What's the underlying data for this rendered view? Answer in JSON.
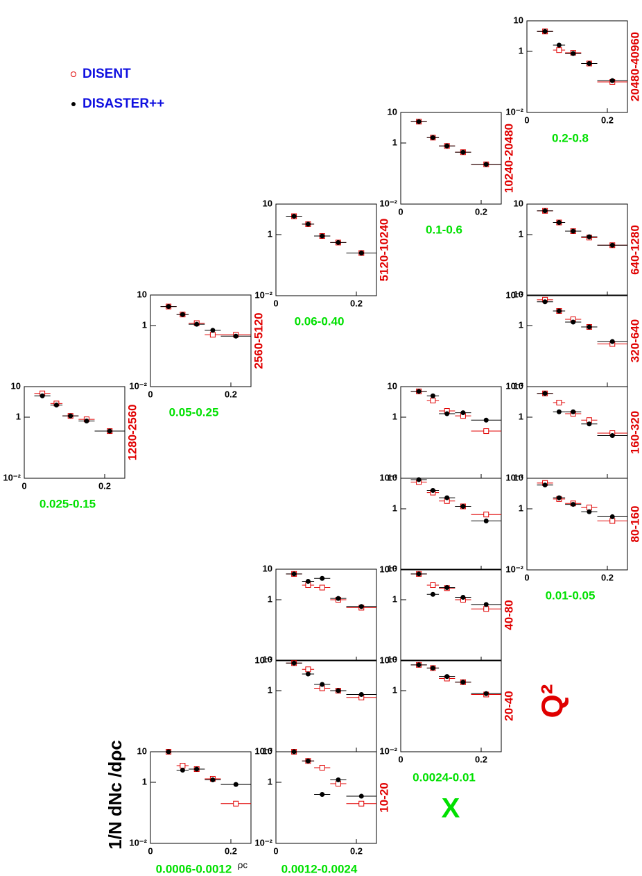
{
  "chart_data": {
    "type": "scatter",
    "log_y": true,
    "y_label": "1/N dNc /dρc",
    "x_label": "ρc",
    "x_axis_title": "X",
    "q2_axis_title": "Q²",
    "xlim": [
      0,
      0.25
    ],
    "ylim": [
      0.01,
      10
    ],
    "xticks": [
      0,
      0.2
    ],
    "yticks": [
      10,
      1,
      {
        "value": 0.01,
        "label": "10⁻²"
      }
    ],
    "x": [
      0.045,
      0.08,
      0.115,
      0.155,
      0.2125
    ],
    "bins": [
      0.025,
      0.065,
      0.095,
      0.135,
      0.175,
      0.25
    ],
    "series": [
      {
        "name": "DISENT",
        "color": "#e00000",
        "marker": "open"
      },
      {
        "name": "DISASTER++",
        "color": "#000000",
        "marker": "filled"
      }
    ],
    "panels": [
      {
        "x_range": "0.025-0.15",
        "q2_range": "1280-2560",
        "values": [
          [
            6,
            2.8,
            1.1,
            0.85,
            0.35
          ],
          [
            5,
            2.5,
            1.1,
            0.75,
            0.35
          ]
        ]
      },
      {
        "x_range": "0.05-0.25",
        "q2_range": "2560-5120",
        "values": [
          [
            4.2,
            2.3,
            1.2,
            0.5,
            0.5
          ],
          [
            4.2,
            2.3,
            1.1,
            0.7,
            0.45
          ]
        ]
      },
      {
        "x_range": "0.06-0.40",
        "q2_range": "5120-10240",
        "values": [
          [
            4,
            2.2,
            0.9,
            0.55,
            0.25
          ],
          [
            4,
            2.2,
            0.9,
            0.55,
            0.25
          ]
        ]
      },
      {
        "x_range": "0.1-0.6",
        "q2_range": "10240-20480",
        "values": [
          [
            5,
            1.5,
            0.8,
            0.5,
            0.2
          ],
          [
            5,
            1.5,
            0.8,
            0.5,
            0.2
          ]
        ]
      },
      {
        "x_range": "0.2-0.8",
        "q2_range": "20480-40960",
        "values": [
          [
            4.5,
            1.1,
            0.9,
            0.4,
            0.1
          ],
          [
            4.5,
            1.6,
            0.85,
            0.4,
            0.11
          ]
        ]
      },
      {
        "q2_range": "640-1280",
        "values": [
          [
            6,
            2.5,
            1.3,
            0.8,
            0.45
          ],
          [
            6,
            2.5,
            1.3,
            0.85,
            0.45
          ]
        ]
      },
      {
        "q2_range": "320-640",
        "values": [
          [
            7,
            3,
            1.6,
            0.9,
            0.25
          ],
          [
            6,
            3,
            1.3,
            0.9,
            0.3
          ]
        ]
      },
      {
        "q2_range": "160-320",
        "values": [
          [
            6,
            3,
            1.3,
            0.8,
            0.3
          ],
          [
            6,
            1.5,
            1.5,
            0.6,
            0.25
          ]
        ]
      },
      {
        "x_range": "0.01-0.05",
        "q2_range": "80-160",
        "values": [
          [
            7,
            2.1,
            1.5,
            1.1,
            0.4
          ],
          [
            6,
            2.3,
            1.4,
            0.8,
            0.55
          ]
        ]
      },
      {
        "values": [
          [
            7,
            3.5,
            1.6,
            1.1,
            0.35
          ],
          [
            7,
            5,
            1.3,
            1.4,
            0.8
          ]
        ]
      },
      {
        "values": [
          [
            7.5,
            3.4,
            1.8,
            1.2,
            0.65
          ],
          [
            9,
            4,
            2.3,
            1.2,
            0.4
          ]
        ]
      },
      {
        "q2_range": "40-80",
        "values": [
          [
            7,
            3,
            2.4,
            1,
            0.5
          ],
          [
            7,
            1.5,
            2.5,
            1.2,
            0.7
          ]
        ]
      },
      {
        "x_range": "0.0024-0.01",
        "q2_range": "20-40",
        "values": [
          [
            7,
            5.5,
            2.5,
            1.9,
            0.75
          ],
          [
            7,
            5.5,
            2.9,
            1.9,
            0.8
          ]
        ]
      },
      {
        "values": [
          [
            7,
            3,
            2.5,
            1,
            0.55
          ],
          [
            7,
            4,
            5,
            1.1,
            0.6
          ]
        ]
      },
      {
        "values": [
          [
            8,
            5,
            1.2,
            1,
            0.6
          ],
          [
            8,
            3.5,
            1.6,
            1,
            0.75
          ]
        ]
      },
      {
        "x_range": "0.0012-0.0024",
        "q2_range": "10-20",
        "values": [
          [
            10,
            5,
            3,
            0.9,
            0.2
          ],
          [
            10,
            5,
            0.4,
            1.2,
            0.35
          ]
        ]
      },
      {
        "x_range": "0.0006-0.0012",
        "values": [
          [
            10,
            3.5,
            2.7,
            1.3,
            0.2
          ],
          [
            10,
            2.5,
            2.7,
            1.2,
            0.85
          ]
        ]
      }
    ]
  }
}
